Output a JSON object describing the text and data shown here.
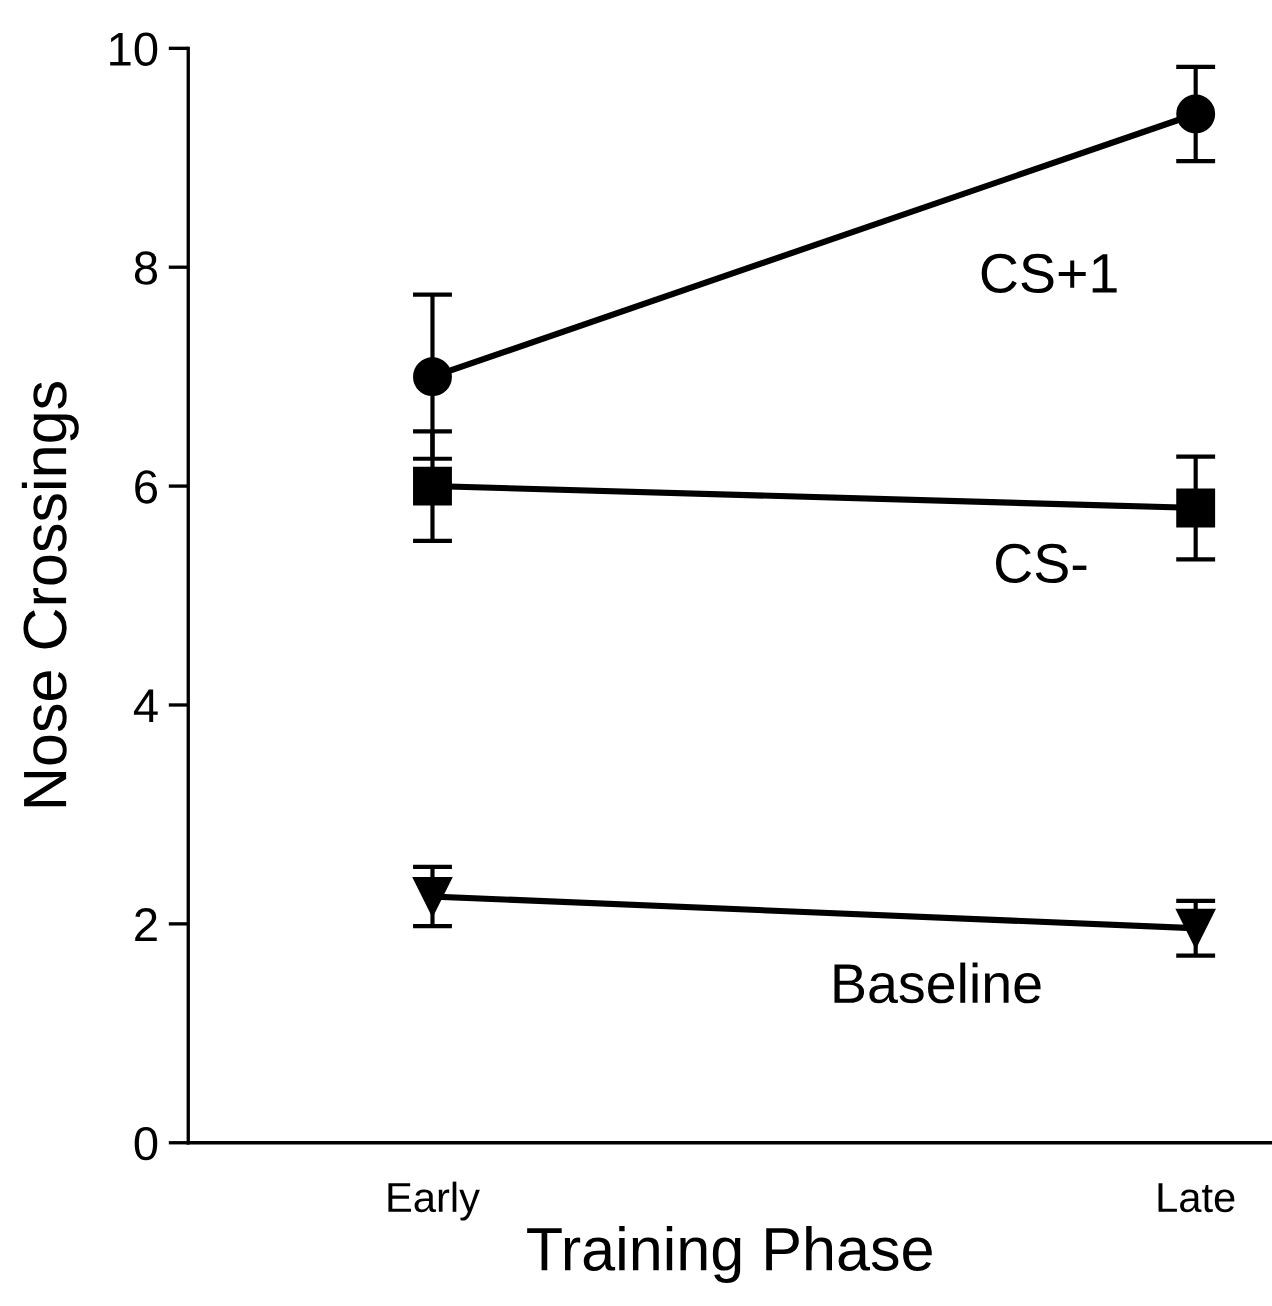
{
  "chart_data": {
    "type": "line",
    "xlabel": "Training Phase",
    "ylabel": "Nose Crossings",
    "categories": [
      "Early",
      "Late"
    ],
    "ylim": [
      0,
      10
    ],
    "yticks": [
      0,
      2,
      4,
      6,
      8,
      10
    ],
    "grid": false,
    "legend": false,
    "line_style": "solid",
    "series": [
      {
        "name": "CS+1",
        "color": "#000000",
        "marker": "circle",
        "values": [
          7.0,
          9.4
        ],
        "errors": [
          0.75,
          0.43
        ]
      },
      {
        "name": "CS-",
        "color": "#000000",
        "marker": "square",
        "values": [
          6.0,
          5.8
        ],
        "errors": [
          0.5,
          0.47
        ]
      },
      {
        "name": "Baseline",
        "color": "#000000",
        "marker": "triangle",
        "values": [
          2.25,
          1.96
        ],
        "errors": [
          0.27,
          0.25
        ]
      }
    ]
  }
}
